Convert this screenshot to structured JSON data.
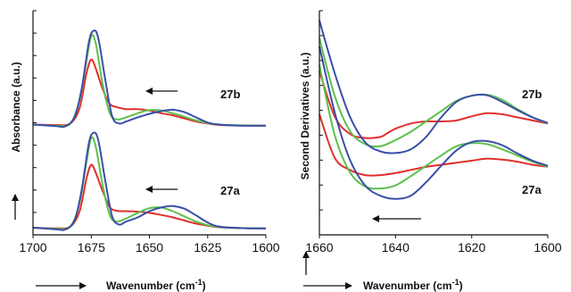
{
  "chart_data": [
    {
      "type": "line",
      "panel": "left",
      "ylabel": "Absorbance (a.u.)",
      "xlabel": "Wavenumber (cm",
      "xlabel_sup": "-1",
      "xlabel_close": ")",
      "xlim": [
        1700,
        1600
      ],
      "ylim": [
        0,
        10
      ],
      "x_ticks": [
        "1700",
        "1675",
        "1650",
        "1625",
        "1600"
      ],
      "x_tick_values": [
        1700,
        1675,
        1650,
        1625,
        1600
      ],
      "annotations": [
        "27b",
        "27a"
      ],
      "colors": {
        "red": "#e0302c",
        "green": "#5cc04b",
        "blue": "#3a4fa8"
      },
      "series": [
        {
          "color": "red",
          "group": "27b",
          "values": [
            [
              1700,
              5.0
            ],
            [
              1690,
              4.98
            ],
            [
              1684,
              5.05
            ],
            [
              1680,
              5.8
            ],
            [
              1677,
              7.5
            ],
            [
              1675,
              8.15
            ],
            [
              1673,
              7.7
            ],
            [
              1670,
              6.7
            ],
            [
              1667,
              6.0
            ],
            [
              1664,
              5.85
            ],
            [
              1660,
              5.75
            ],
            [
              1655,
              5.75
            ],
            [
              1650,
              5.68
            ],
            [
              1645,
              5.55
            ],
            [
              1640,
              5.45
            ],
            [
              1635,
              5.3
            ],
            [
              1630,
              5.15
            ],
            [
              1625,
              5.05
            ],
            [
              1620,
              4.98
            ],
            [
              1610,
              4.95
            ],
            [
              1600,
              4.95
            ]
          ]
        },
        {
          "color": "green",
          "group": "27b",
          "values": [
            [
              1700,
              5.0
            ],
            [
              1690,
              4.95
            ],
            [
              1684,
              5.05
            ],
            [
              1680,
              6.2
            ],
            [
              1677,
              8.1
            ],
            [
              1675,
              9.3
            ],
            [
              1673,
              8.9
            ],
            [
              1670,
              6.9
            ],
            [
              1667,
              5.55
            ],
            [
              1664,
              5.25
            ],
            [
              1660,
              5.35
            ],
            [
              1655,
              5.55
            ],
            [
              1650,
              5.7
            ],
            [
              1645,
              5.68
            ],
            [
              1640,
              5.55
            ],
            [
              1635,
              5.38
            ],
            [
              1630,
              5.2
            ],
            [
              1625,
              5.07
            ],
            [
              1620,
              5.0
            ],
            [
              1610,
              4.96
            ],
            [
              1600,
              4.95
            ]
          ]
        },
        {
          "color": "blue",
          "group": "27b",
          "values": [
            [
              1700,
              5.0
            ],
            [
              1690,
              4.92
            ],
            [
              1686,
              4.92
            ],
            [
              1682,
              5.4
            ],
            [
              1679,
              6.8
            ],
            [
              1676,
              9.0
            ],
            [
              1674,
              9.55
            ],
            [
              1672,
              9.2
            ],
            [
              1669,
              7.2
            ],
            [
              1666,
              5.4
            ],
            [
              1663,
              5.05
            ],
            [
              1660,
              5.15
            ],
            [
              1655,
              5.35
            ],
            [
              1650,
              5.52
            ],
            [
              1645,
              5.65
            ],
            [
              1640,
              5.72
            ],
            [
              1635,
              5.6
            ],
            [
              1630,
              5.35
            ],
            [
              1625,
              5.1
            ],
            [
              1620,
              5.0
            ],
            [
              1610,
              4.95
            ],
            [
              1600,
              4.95
            ]
          ]
        },
        {
          "color": "red",
          "group": "27a",
          "values": [
            [
              1700,
              0.0
            ],
            [
              1690,
              -0.03
            ],
            [
              1684,
              0.05
            ],
            [
              1680,
              0.8
            ],
            [
              1677,
              2.4
            ],
            [
              1675,
              3.05
            ],
            [
              1673,
              2.65
            ],
            [
              1670,
              1.75
            ],
            [
              1667,
              1.0
            ],
            [
              1664,
              0.82
            ],
            [
              1660,
              0.8
            ],
            [
              1655,
              0.78
            ],
            [
              1650,
              0.72
            ],
            [
              1645,
              0.62
            ],
            [
              1640,
              0.5
            ],
            [
              1635,
              0.35
            ],
            [
              1630,
              0.2
            ],
            [
              1625,
              0.1
            ],
            [
              1620,
              0.02
            ],
            [
              1610,
              -0.02
            ],
            [
              1600,
              -0.03
            ]
          ]
        },
        {
          "color": "green",
          "group": "27a",
          "values": [
            [
              1700,
              0.0
            ],
            [
              1690,
              -0.05
            ],
            [
              1684,
              0.05
            ],
            [
              1680,
              1.2
            ],
            [
              1677,
              3.2
            ],
            [
              1675,
              4.35
            ],
            [
              1673,
              3.9
            ],
            [
              1670,
              2.0
            ],
            [
              1667,
              0.6
            ],
            [
              1664,
              0.3
            ],
            [
              1660,
              0.45
            ],
            [
              1655,
              0.72
            ],
            [
              1650,
              0.95
            ],
            [
              1645,
              0.98
            ],
            [
              1640,
              0.8
            ],
            [
              1635,
              0.55
            ],
            [
              1630,
              0.3
            ],
            [
              1625,
              0.12
            ],
            [
              1620,
              0.03
            ],
            [
              1610,
              -0.02
            ],
            [
              1600,
              -0.03
            ]
          ]
        },
        {
          "color": "blue",
          "group": "27a",
          "values": [
            [
              1700,
              0.0
            ],
            [
              1690,
              -0.08
            ],
            [
              1686,
              -0.08
            ],
            [
              1682,
              0.4
            ],
            [
              1679,
              1.9
            ],
            [
              1676,
              4.1
            ],
            [
              1674,
              4.6
            ],
            [
              1672,
              4.25
            ],
            [
              1669,
              2.3
            ],
            [
              1666,
              0.55
            ],
            [
              1663,
              0.15
            ],
            [
              1660,
              0.3
            ],
            [
              1655,
              0.5
            ],
            [
              1650,
              0.8
            ],
            [
              1645,
              0.98
            ],
            [
              1640,
              1.05
            ],
            [
              1635,
              0.92
            ],
            [
              1630,
              0.6
            ],
            [
              1625,
              0.25
            ],
            [
              1620,
              0.05
            ],
            [
              1610,
              -0.02
            ],
            [
              1600,
              -0.03
            ]
          ]
        }
      ]
    },
    {
      "type": "line",
      "panel": "right",
      "ylabel": "Second Derivatives (a.u.)",
      "xlabel": "Wavenumber (cm",
      "xlabel_sup": "-1",
      "xlabel_close": ")",
      "xlim": [
        1660,
        1600
      ],
      "ylim": [
        0,
        10
      ],
      "x_ticks": [
        "1660",
        "1640",
        "1620",
        "1600"
      ],
      "x_tick_values": [
        1660,
        1640,
        1620,
        1600
      ],
      "annotations": [
        "27b",
        "27a"
      ],
      "colors": {
        "red": "#e0302c",
        "green": "#5cc04b",
        "blue": "#3a4fa8"
      },
      "series": [
        {
          "color": "red",
          "group": "27b",
          "values": [
            [
              1660,
              7.6
            ],
            [
              1656,
              5.4
            ],
            [
              1652,
              4.55
            ],
            [
              1648,
              4.35
            ],
            [
              1644,
              4.4
            ],
            [
              1642,
              4.6
            ],
            [
              1640,
              4.8
            ],
            [
              1636,
              5.05
            ],
            [
              1632,
              5.15
            ],
            [
              1628,
              5.15
            ],
            [
              1624,
              5.2
            ],
            [
              1620,
              5.4
            ],
            [
              1616,
              5.55
            ],
            [
              1612,
              5.5
            ],
            [
              1608,
              5.35
            ],
            [
              1604,
              5.2
            ],
            [
              1600,
              5.05
            ]
          ]
        },
        {
          "color": "green",
          "group": "27b",
          "values": [
            [
              1660,
              9.2
            ],
            [
              1656,
              6.4
            ],
            [
              1652,
              4.7
            ],
            [
              1648,
              4.05
            ],
            [
              1644,
              3.95
            ],
            [
              1640,
              4.25
            ],
            [
              1636,
              4.65
            ],
            [
              1632,
              5.15
            ],
            [
              1628,
              5.65
            ],
            [
              1624,
              6.15
            ],
            [
              1620,
              6.4
            ],
            [
              1616,
              6.45
            ],
            [
              1612,
              6.2
            ],
            [
              1608,
              5.75
            ],
            [
              1604,
              5.35
            ],
            [
              1600,
              5.05
            ]
          ]
        },
        {
          "color": "blue",
          "group": "27b",
          "values": [
            [
              1660,
              10.05
            ],
            [
              1656,
              7.5
            ],
            [
              1652,
              5.4
            ],
            [
              1648,
              4.15
            ],
            [
              1644,
              3.7
            ],
            [
              1640,
              3.62
            ],
            [
              1636,
              3.8
            ],
            [
              1632,
              4.4
            ],
            [
              1628,
              5.35
            ],
            [
              1624,
              6.1
            ],
            [
              1620,
              6.4
            ],
            [
              1616,
              6.42
            ],
            [
              1612,
              6.1
            ],
            [
              1608,
              5.7
            ],
            [
              1604,
              5.35
            ],
            [
              1600,
              5.08
            ]
          ]
        },
        {
          "color": "red",
          "group": "27a",
          "values": [
            [
              1660,
              5.5
            ],
            [
              1656,
              3.4
            ],
            [
              1652,
              2.8
            ],
            [
              1648,
              2.55
            ],
            [
              1644,
              2.55
            ],
            [
              1640,
              2.65
            ],
            [
              1636,
              2.8
            ],
            [
              1632,
              2.95
            ],
            [
              1628,
              3.05
            ],
            [
              1624,
              3.15
            ],
            [
              1620,
              3.25
            ],
            [
              1616,
              3.35
            ],
            [
              1612,
              3.3
            ],
            [
              1608,
              3.2
            ],
            [
              1604,
              3.05
            ],
            [
              1600,
              2.95
            ]
          ]
        },
        {
          "color": "green",
          "group": "27a",
          "values": [
            [
              1660,
              7.9
            ],
            [
              1656,
              4.5
            ],
            [
              1652,
              2.7
            ],
            [
              1648,
              2.0
            ],
            [
              1644,
              1.9
            ],
            [
              1640,
              2.05
            ],
            [
              1636,
              2.5
            ],
            [
              1632,
              3.0
            ],
            [
              1628,
              3.5
            ],
            [
              1624,
              3.95
            ],
            [
              1620,
              4.1
            ],
            [
              1616,
              4.05
            ],
            [
              1612,
              3.8
            ],
            [
              1608,
              3.5
            ],
            [
              1604,
              3.2
            ],
            [
              1600,
              2.95
            ]
          ]
        },
        {
          "color": "blue",
          "group": "27a",
          "values": [
            [
              1660,
              8.8
            ],
            [
              1656,
              5.6
            ],
            [
              1652,
              3.3
            ],
            [
              1648,
              2.05
            ],
            [
              1644,
              1.55
            ],
            [
              1640,
              1.4
            ],
            [
              1636,
              1.55
            ],
            [
              1632,
              2.2
            ],
            [
              1628,
              3.0
            ],
            [
              1624,
              3.75
            ],
            [
              1620,
              4.15
            ],
            [
              1616,
              4.2
            ],
            [
              1612,
              4.0
            ],
            [
              1608,
              3.6
            ],
            [
              1604,
              3.25
            ],
            [
              1600,
              3.0
            ]
          ]
        }
      ]
    }
  ]
}
